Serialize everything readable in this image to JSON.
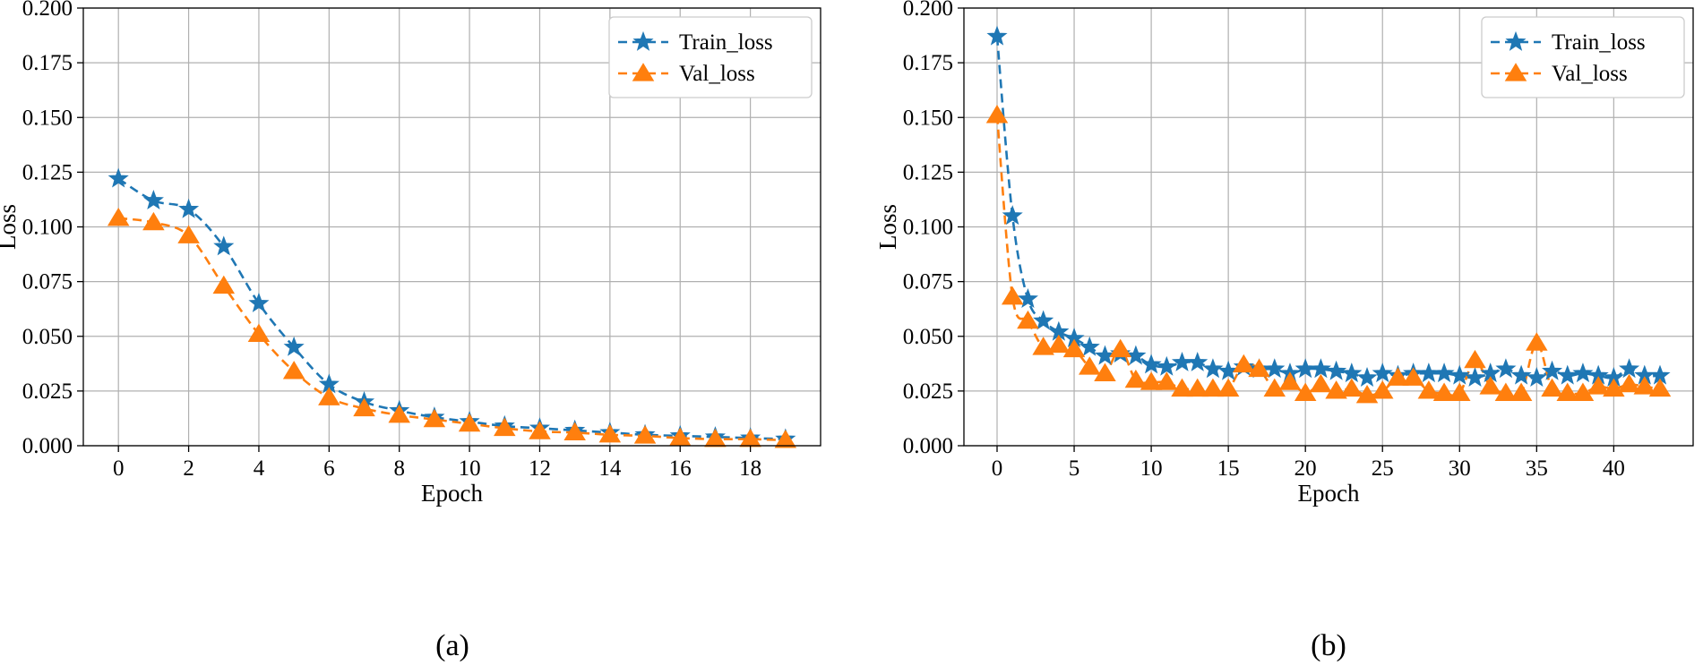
{
  "chart_data": [
    {
      "type": "line",
      "caption": "(a)",
      "xlabel": "Epoch",
      "ylabel": "Loss",
      "xlim": [
        -1,
        20
      ],
      "ylim": [
        0,
        0.2
      ],
      "xticks": [
        0,
        2,
        4,
        6,
        8,
        10,
        12,
        14,
        16,
        18
      ],
      "yticks": [
        0.0,
        0.025,
        0.05,
        0.075,
        0.1,
        0.125,
        0.15,
        0.175,
        0.2
      ],
      "ytick_labels": [
        "0.000",
        "0.025",
        "0.050",
        "0.075",
        "0.100",
        "0.125",
        "0.150",
        "0.175",
        "0.200"
      ],
      "grid": true,
      "legend_position": "top-right",
      "x": [
        0,
        1,
        2,
        3,
        4,
        5,
        6,
        7,
        8,
        9,
        10,
        11,
        12,
        13,
        14,
        15,
        16,
        17,
        18,
        19
      ],
      "series": [
        {
          "name": "Train_loss",
          "color": "#1f77b4",
          "marker": "star",
          "values": [
            0.122,
            0.112,
            0.108,
            0.091,
            0.065,
            0.045,
            0.028,
            0.02,
            0.016,
            0.013,
            0.011,
            0.009,
            0.008,
            0.007,
            0.006,
            0.005,
            0.0045,
            0.004,
            0.0035,
            0.003
          ]
        },
        {
          "name": "Val_loss",
          "color": "#ff7f0e",
          "marker": "triangle",
          "values": [
            0.104,
            0.102,
            0.096,
            0.073,
            0.051,
            0.034,
            0.022,
            0.017,
            0.014,
            0.012,
            0.01,
            0.008,
            0.0065,
            0.006,
            0.005,
            0.0045,
            0.0035,
            0.003,
            0.003,
            0.0025
          ]
        }
      ]
    },
    {
      "type": "line",
      "caption": "(b)",
      "xlabel": "Epoch",
      "ylabel": "Loss",
      "xlim": [
        -2.15,
        45.15
      ],
      "ylim": [
        0,
        0.2
      ],
      "xticks": [
        0,
        5,
        10,
        15,
        20,
        25,
        30,
        35,
        40
      ],
      "yticks": [
        0.0,
        0.025,
        0.05,
        0.075,
        0.1,
        0.125,
        0.15,
        0.175,
        0.2
      ],
      "ytick_labels": [
        "0.000",
        "0.025",
        "0.050",
        "0.075",
        "0.100",
        "0.125",
        "0.150",
        "0.175",
        "0.200"
      ],
      "grid": true,
      "legend_position": "top-right",
      "x": [
        0,
        1,
        2,
        3,
        4,
        5,
        6,
        7,
        8,
        9,
        10,
        11,
        12,
        13,
        14,
        15,
        16,
        17,
        18,
        19,
        20,
        21,
        22,
        23,
        24,
        25,
        26,
        27,
        28,
        29,
        30,
        31,
        32,
        33,
        34,
        35,
        36,
        37,
        38,
        39,
        40,
        41,
        42,
        43
      ],
      "series": [
        {
          "name": "Train_loss",
          "color": "#1f77b4",
          "marker": "star",
          "values": [
            0.187,
            0.105,
            0.067,
            0.057,
            0.052,
            0.049,
            0.045,
            0.041,
            0.042,
            0.041,
            0.037,
            0.036,
            0.038,
            0.038,
            0.035,
            0.034,
            0.036,
            0.035,
            0.035,
            0.033,
            0.035,
            0.035,
            0.034,
            0.033,
            0.031,
            0.033,
            0.032,
            0.033,
            0.033,
            0.033,
            0.032,
            0.031,
            0.033,
            0.035,
            0.032,
            0.031,
            0.034,
            0.032,
            0.033,
            0.032,
            0.031,
            0.035,
            0.032,
            0.032
          ]
        },
        {
          "name": "Val_loss",
          "color": "#ff7f0e",
          "marker": "triangle",
          "values": [
            0.151,
            0.068,
            0.057,
            0.045,
            0.046,
            0.044,
            0.036,
            0.033,
            0.044,
            0.03,
            0.029,
            0.029,
            0.026,
            0.026,
            0.026,
            0.026,
            0.037,
            0.035,
            0.026,
            0.029,
            0.024,
            0.028,
            0.025,
            0.026,
            0.023,
            0.025,
            0.031,
            0.031,
            0.025,
            0.024,
            0.024,
            0.039,
            0.027,
            0.024,
            0.024,
            0.047,
            0.026,
            0.024,
            0.024,
            0.027,
            0.026,
            0.028,
            0.027,
            0.026
          ]
        }
      ]
    }
  ]
}
